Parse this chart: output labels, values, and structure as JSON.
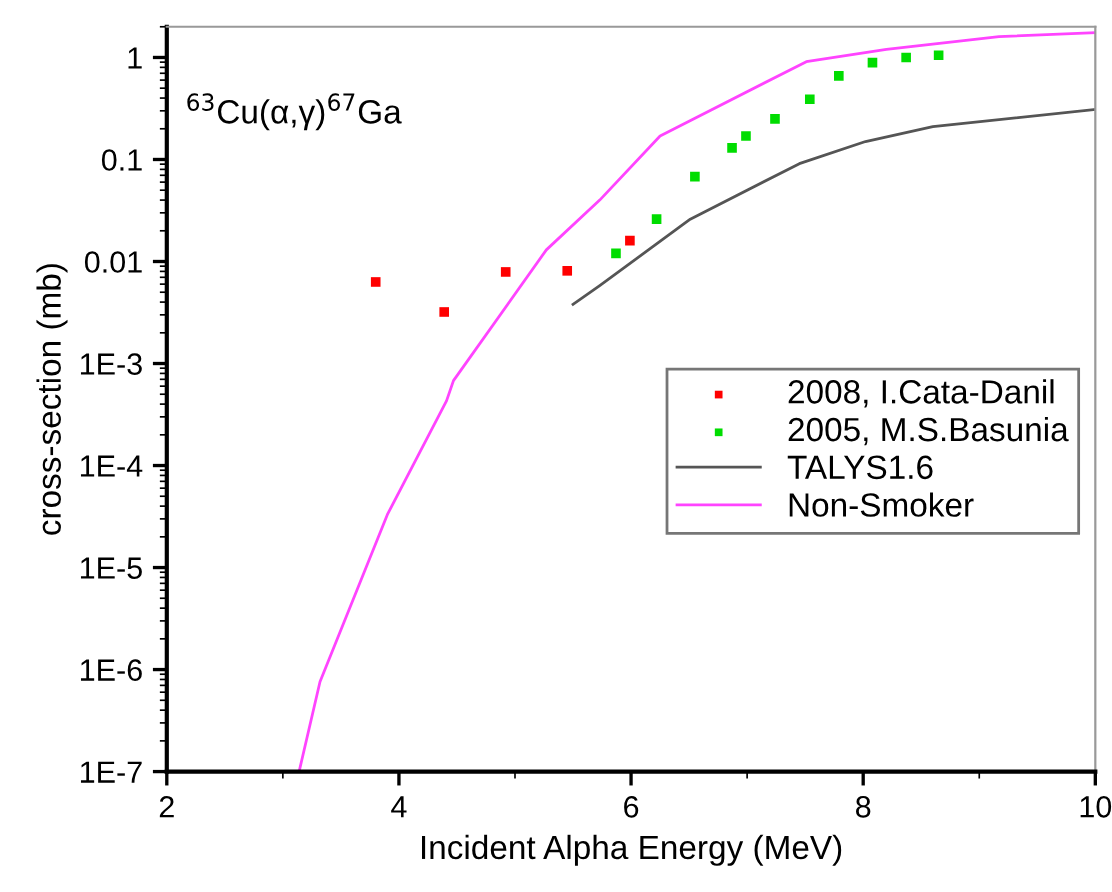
{
  "chart_data": {
    "type": "scatter",
    "xlabel": "Incident Alpha Energy (MeV)",
    "ylabel": "cross-section (mb)",
    "annotations": [
      "$^{63}$Cu(α,γ)$^{67}$Ga"
    ],
    "log": "y",
    "xlim": [
      2,
      10
    ],
    "ylim": [
      1e-07,
      2
    ],
    "xticks": [
      2,
      4,
      6,
      8,
      10
    ],
    "yticks": [
      {
        "value": 1e-07,
        "label": "1E-7"
      },
      {
        "value": 1e-06,
        "label": "1E-6"
      },
      {
        "value": 1e-05,
        "label": "1E-5"
      },
      {
        "value": 0.0001,
        "label": "1E-4"
      },
      {
        "value": 0.001,
        "label": "1E-3"
      },
      0.01,
      0.1,
      1
    ],
    "grid": false,
    "legend": "right",
    "series": [
      {
        "name": "2008, I.Cata-Danil",
        "marker": "square",
        "color": "#ff0000",
        "x": [
          3.8,
          4.39,
          4.92,
          5.45,
          5.99
        ],
        "values": [
          0.0063,
          0.0032,
          0.0079,
          0.0081,
          0.016
        ]
      },
      {
        "name": "2005, M.S.Basunia",
        "marker": "square",
        "color": "#00dd00",
        "x": [
          5.87,
          6.22,
          6.55,
          6.87,
          6.99,
          7.24,
          7.54,
          7.79,
          8.08,
          8.37,
          8.65
        ],
        "values": [
          0.012,
          0.026,
          0.068,
          0.13,
          0.17,
          0.25,
          0.39,
          0.66,
          0.89,
          1.0,
          1.05
        ]
      },
      {
        "name": "TALYS1.6",
        "type": "line",
        "marker": "none",
        "color": "#555555",
        "x": [
          5.5,
          5.73,
          6.51,
          7.45,
          8.02,
          8.6,
          10
        ],
        "values": [
          0.0038,
          0.0058,
          0.026,
          0.091,
          0.15,
          0.21,
          0.31
        ]
      },
      {
        "name": "Non-Smoker",
        "type": "line",
        "marker": "none",
        "color": "#ff44ff",
        "x": [
          3.14,
          3.32,
          3.9,
          4.41,
          4.47,
          5.27,
          5.73,
          6.25,
          7.51,
          8.2,
          9.17,
          10
        ],
        "values": [
          1e-07,
          7.6e-07,
          3.3e-05,
          0.00043,
          0.00068,
          0.013,
          0.04,
          0.17,
          0.91,
          1.2,
          1.6,
          1.75
        ]
      }
    ]
  }
}
